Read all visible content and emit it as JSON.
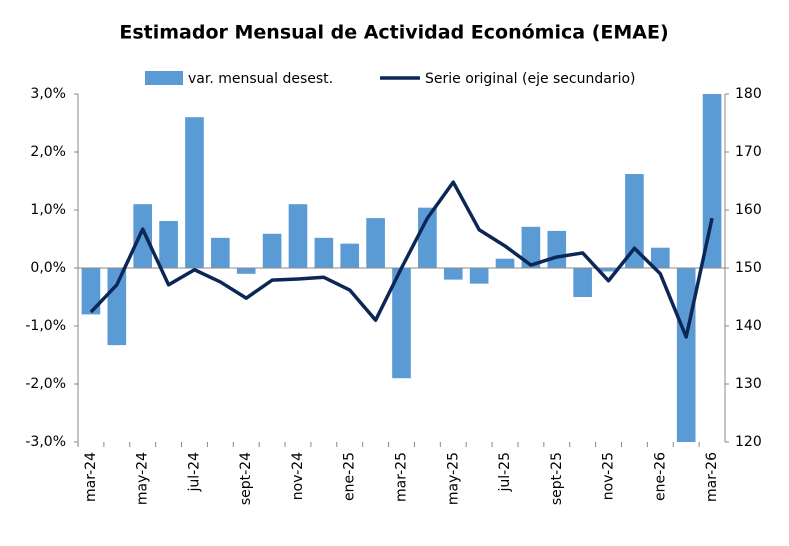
{
  "chart_data": {
    "type": "bar-line",
    "title": "Estimador Mensual de Actividad Económica (EMAE)",
    "categories": [
      "mar-24",
      null,
      "may-24",
      null,
      "jul-24",
      null,
      "sept-24",
      null,
      "nov-24",
      null,
      "ene-25",
      null,
      "mar-25",
      null,
      "may-25",
      null,
      "jul-25",
      null,
      "sept-25",
      null,
      "nov-25",
      null,
      "ene-26",
      null,
      "mar-26"
    ],
    "series": [
      {
        "name": "var. mensual desest.",
        "type": "bar",
        "color": "#5b9bd5",
        "values": [
          -0.8,
          -1.33,
          1.1,
          0.81,
          2.6,
          0.52,
          -0.1,
          0.59,
          1.1,
          0.52,
          0.42,
          0.86,
          -1.9,
          1.04,
          -0.2,
          -0.27,
          0.16,
          0.71,
          0.64,
          -0.5,
          -0.06,
          1.62,
          0.35,
          -3.0,
          3.0
        ]
      },
      {
        "name": "Serie original (eje secundario)",
        "type": "line",
        "axis": "y2",
        "color": "#0c2756",
        "values": [
          142.4,
          147.1,
          156.7,
          147.1,
          149.7,
          147.6,
          144.8,
          147.9,
          148.1,
          148.4,
          146.2,
          141,
          150,
          158.6,
          164.8,
          156.6,
          153.8,
          150.5,
          151.9,
          152.6,
          147.8,
          153.4,
          149,
          138.1,
          158.6
        ]
      }
    ],
    "ylim": [
      -3,
      3
    ],
    "yticks": [
      {
        "value": -3,
        "label": "-3,0%"
      },
      {
        "value": -2,
        "label": "-2,0%"
      },
      {
        "value": -1,
        "label": "-1,0%"
      },
      {
        "value": 0,
        "label": "0,0%"
      },
      {
        "value": 1,
        "label": "1,0%"
      },
      {
        "value": 2,
        "label": "2,0%"
      },
      {
        "value": 3,
        "label": "3,0%"
      }
    ],
    "y2lim": [
      120,
      180
    ],
    "y2ticks": [
      120,
      130,
      140,
      150,
      160,
      170,
      180
    ],
    "grid": false,
    "legend": "top"
  }
}
